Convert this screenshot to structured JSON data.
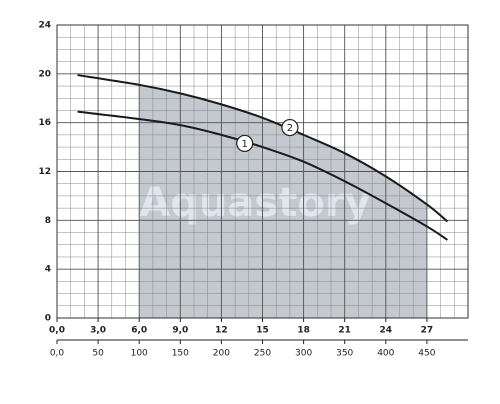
{
  "chart_data": {
    "type": "line",
    "watermark": "Aquastory",
    "x": [
      1.5,
      6,
      9,
      12,
      15,
      18,
      21,
      24,
      27,
      28.5
    ],
    "series": [
      {
        "name": "1",
        "color": "#1a1a1a",
        "values": [
          16.9,
          16.3,
          15.8,
          15.0,
          14.0,
          12.8,
          11.2,
          9.4,
          7.5,
          6.4
        ]
      },
      {
        "name": "2",
        "color": "#1a1a1a",
        "values": [
          19.9,
          19.1,
          18.4,
          17.5,
          16.4,
          15.0,
          13.5,
          11.6,
          9.3,
          7.9
        ]
      }
    ],
    "curve_labels": [
      {
        "text": "1",
        "x": 13.7,
        "y": 14.3
      },
      {
        "text": "2",
        "x": 17,
        "y": 15.6
      }
    ],
    "shaded_range": [
      6,
      27
    ],
    "shade_color": "#c3c9cf",
    "xlim": [
      0,
      30
    ],
    "xticks": [
      {
        "value": 0,
        "label": "0,0"
      },
      {
        "value": 3,
        "label": "3,0"
      },
      {
        "value": 6,
        "label": "6,0"
      },
      {
        "value": 9,
        "label": "9,0"
      },
      12,
      15,
      18,
      21,
      24,
      27
    ],
    "x2lim": [
      0,
      500
    ],
    "x2ticks": [
      {
        "value": 0,
        "label": "0,0"
      },
      50,
      100,
      150,
      200,
      250,
      300,
      350,
      400,
      450
    ],
    "ylim": [
      0,
      24
    ],
    "yticks": [
      0,
      4,
      8,
      12,
      16,
      20,
      24
    ],
    "x_minor_step": 1,
    "y_minor_step": 1,
    "grid": true
  }
}
